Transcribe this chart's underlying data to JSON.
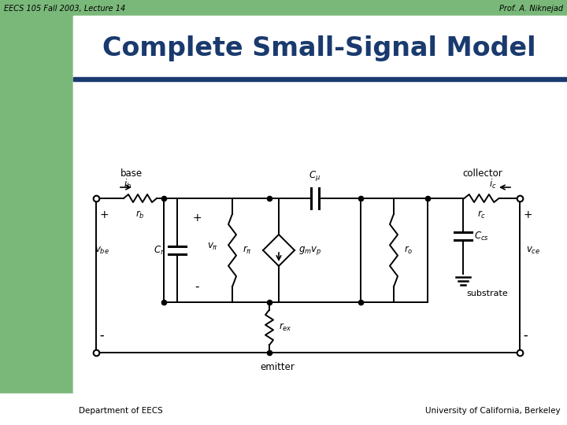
{
  "title": "Complete Small-Signal Model",
  "header_left": "EECS 105 Fall 2003, Lecture 14",
  "header_right": "Prof. A. Niknejad",
  "footer_left": "Department of EECS",
  "footer_right": "University of California, Berkeley",
  "bg_color": "#ffffff",
  "header_bg": "#7ab87a",
  "title_color": "#1a3a6e",
  "accent_bar_color": "#1a3a6e",
  "circuit_color": "#000000"
}
